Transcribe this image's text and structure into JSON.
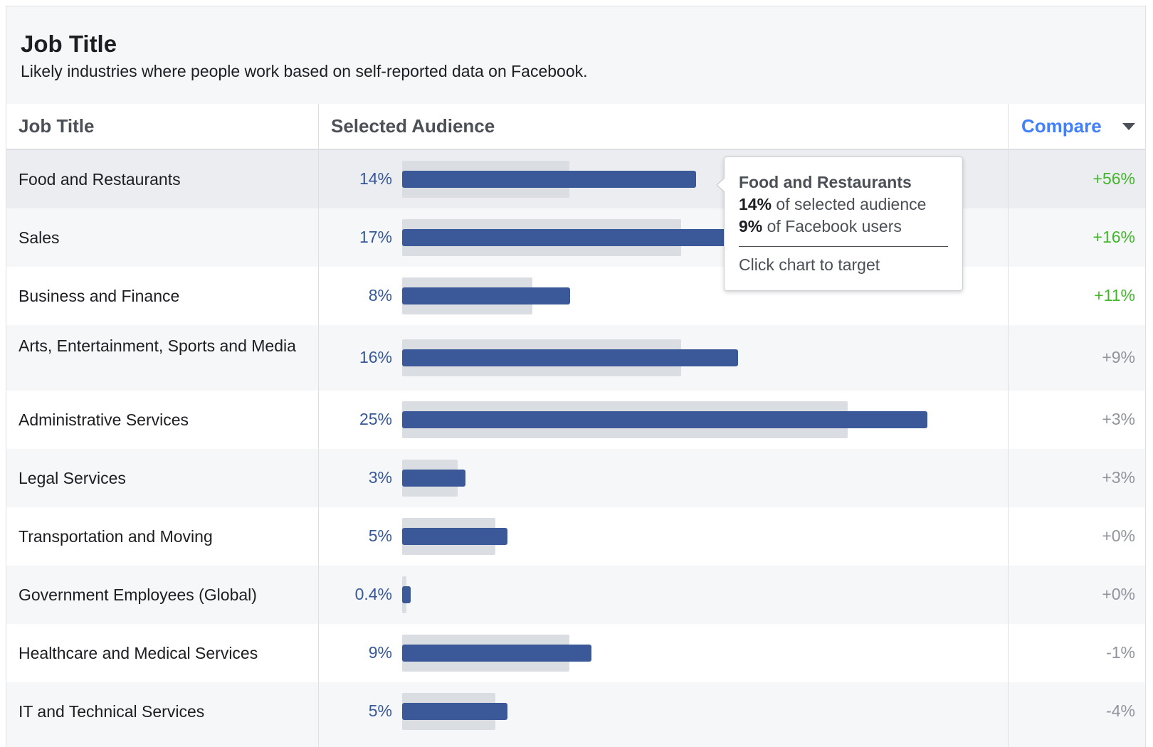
{
  "panel": {
    "title": "Job Title",
    "subtitle": "Likely industries where people work based on self-reported data on Facebook."
  },
  "columns": {
    "job_title": "Job Title",
    "selected_audience": "Selected Audience",
    "compare": "Compare"
  },
  "colors": {
    "bar_selected": "#3b5998",
    "bar_facebook": "#dadde1",
    "positive_strong": "#42b72a",
    "neutral": "#90949c",
    "link": "#4080ff"
  },
  "chart_data": {
    "type": "bar",
    "categories": [
      "Food and Restaurants",
      "Sales",
      "Business and Finance",
      "Arts, Entertainment, Sports and Media",
      "Administrative Services",
      "Legal Services",
      "Transportation and Moving",
      "Government Employees (Global)",
      "Healthcare and Medical Services",
      "IT and Technical Services"
    ],
    "series": [
      {
        "name": "Selected Audience",
        "values": [
          14,
          17,
          8,
          16,
          25,
          3,
          5,
          0.4,
          9,
          5
        ],
        "labels": [
          "14%",
          "17%",
          "8%",
          "16%",
          "25%",
          "3%",
          "5%",
          "0.4%",
          "9%",
          "5%"
        ]
      },
      {
        "values": [
          9,
          15,
          7,
          15,
          24,
          3,
          5,
          0.2,
          9,
          5
        ]
      }
    ],
    "compare": [
      "+56%",
      "+16%",
      "+11%",
      "+9%",
      "+3%",
      "+3%",
      "+0%",
      "+0%",
      "-1%",
      "-4%"
    ],
    "compare_highlight": [
      true,
      true,
      true,
      false,
      false,
      false,
      false,
      false,
      false,
      false
    ],
    "xlim": [
      0,
      25
    ]
  },
  "tooltip": {
    "title": "Food and Restaurants",
    "selected_value": "14%",
    "selected_text": " of selected audience",
    "facebook_value": "9%",
    "facebook_text": " of Facebook users",
    "footer": "Click chart to target"
  }
}
